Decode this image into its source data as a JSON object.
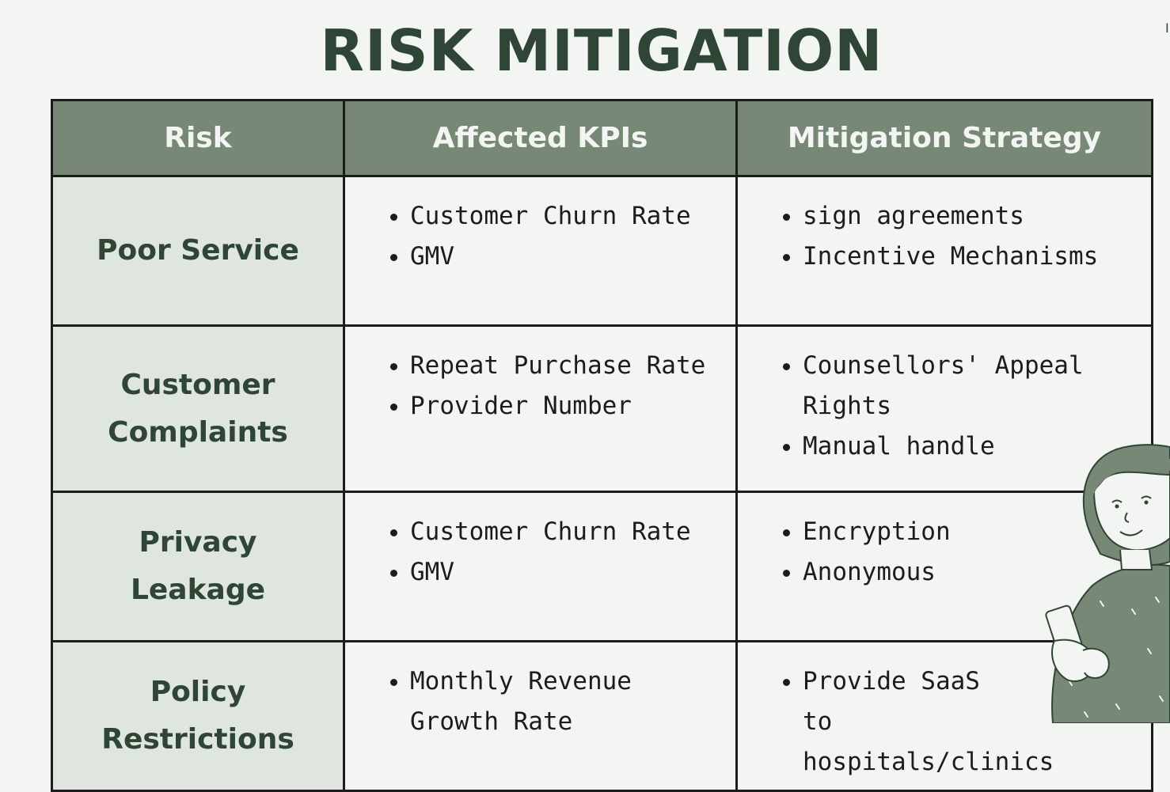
{
  "title": "RISK MITIGATION",
  "corner_mark": "I",
  "table": {
    "headers": [
      "Risk",
      "Affected KPIs",
      "Mitigation Strategy"
    ],
    "rows": [
      {
        "risk": "Poor Service",
        "kpis": [
          "Customer Churn Rate",
          "GMV"
        ],
        "strategies": [
          "sign agreements",
          "Incentive Mechanisms"
        ]
      },
      {
        "risk": "Customer Complaints",
        "kpis": [
          "Repeat Purchase Rate",
          "Provider Number"
        ],
        "strategies": [
          "Counsellors' Appeal Rights",
          "Manual handle"
        ]
      },
      {
        "risk": "Privacy Leakage",
        "kpis": [
          "Customer Churn Rate",
          "GMV"
        ],
        "strategies": [
          "Encryption",
          "Anonymous"
        ]
      },
      {
        "risk": "Policy Restrictions",
        "kpis": [
          "Monthly Revenue Growth Rate"
        ],
        "strategies": [
          "Provide SaaS to hospitals/clinics"
        ]
      }
    ]
  },
  "colors": {
    "background": "#f2f5f1",
    "header_fill": "#778876",
    "risk_column_fill": "#dfe6dd",
    "title_text": "#2f4535",
    "border": "#1c1c1c"
  },
  "icons": {
    "illustration": "woman-reading-phone-illustration"
  }
}
